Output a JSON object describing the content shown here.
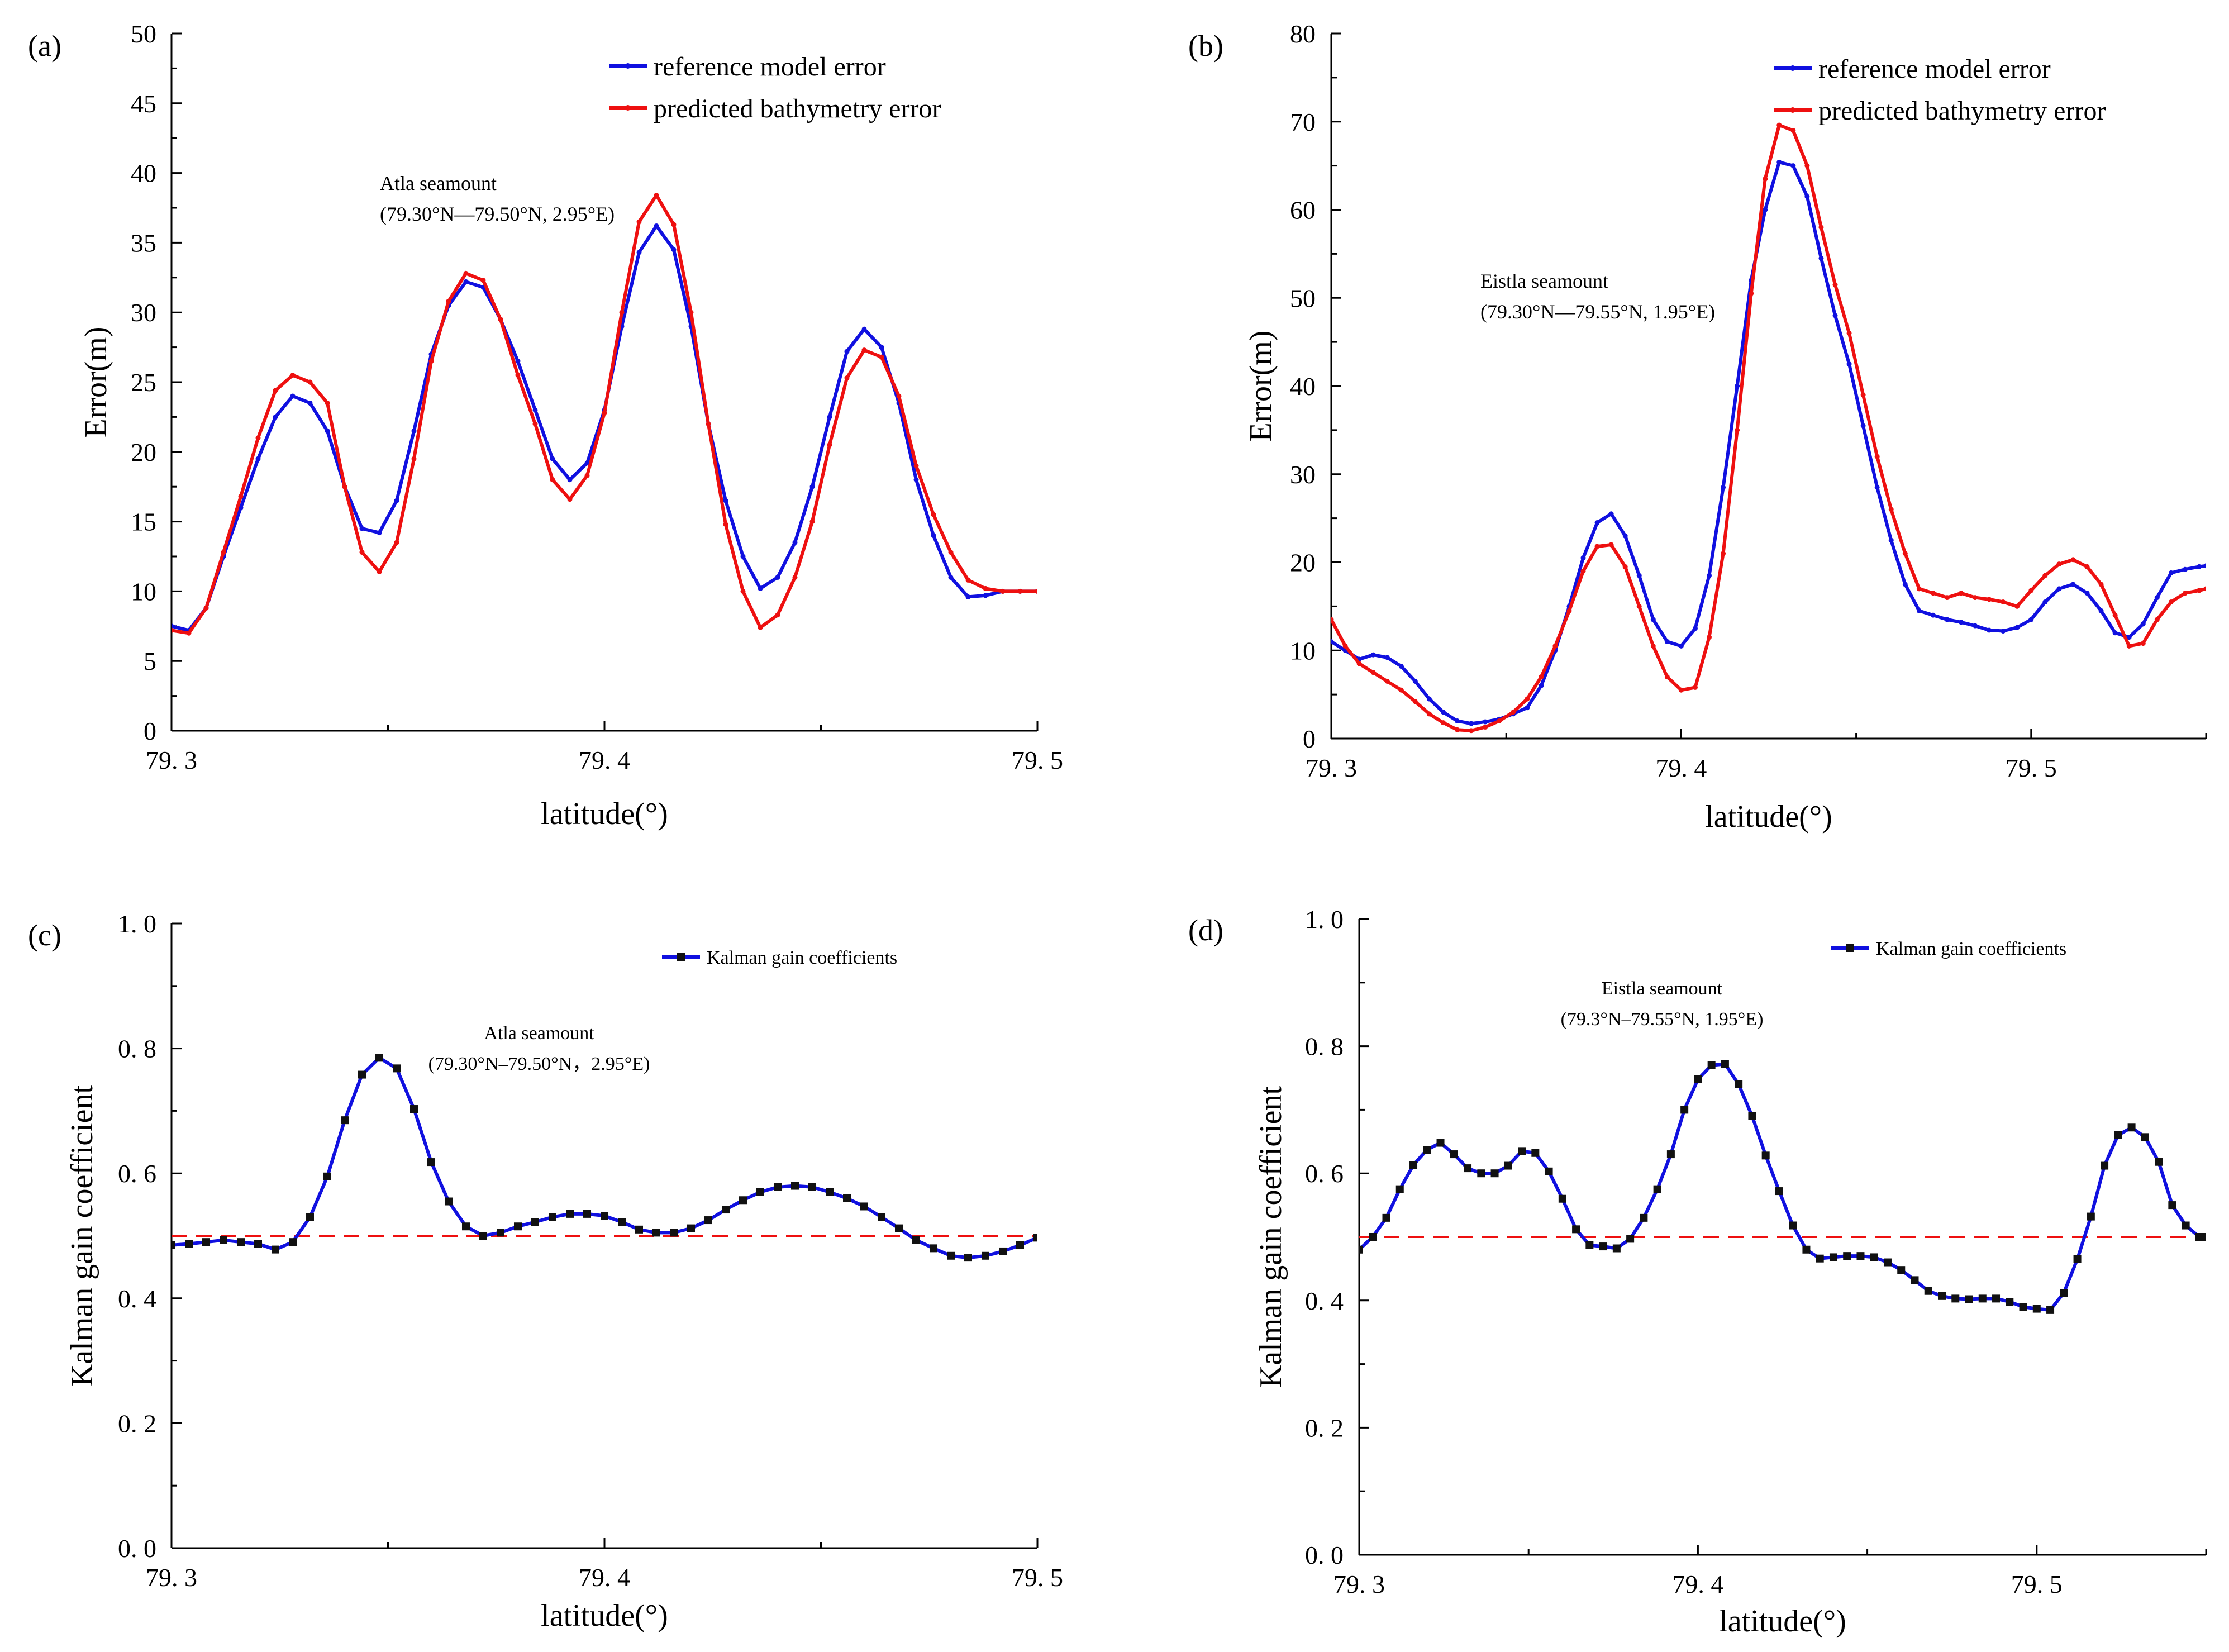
{
  "figure": {
    "colors": {
      "blue": "#1010e0",
      "red": "#ee1010",
      "marker": "#111111",
      "refline": "#ee1010"
    }
  },
  "chart_data": [
    {
      "id": "a",
      "type": "line",
      "panel_label": "(a)",
      "xlabel": "latitude(°)",
      "ylabel": "Error(m)",
      "xlim": [
        79.3,
        79.5
      ],
      "ylim": [
        0,
        50
      ],
      "xticks": [
        79.3,
        79.4,
        79.5
      ],
      "xtick_labels": [
        "79. 3",
        "79. 4",
        "79. 5"
      ],
      "yticks": [
        0,
        5,
        10,
        15,
        20,
        25,
        30,
        35,
        40,
        45,
        50
      ],
      "ytick_labels": [
        "0",
        "5",
        "10",
        "15",
        "20",
        "25",
        "30",
        "35",
        "40",
        "45",
        "50"
      ],
      "legend": {
        "position": "top-right",
        "entries": [
          "reference model error",
          "predicted bathymetry error"
        ]
      },
      "annotation": {
        "lines": [
          "Atla seamount",
          "(79.30°N—79.50°N, 2.95°E)"
        ]
      },
      "series": [
        {
          "name": "reference model error",
          "color": "#1010e0",
          "marker": "dot",
          "x": [
            79.3,
            79.304,
            79.308,
            79.312,
            79.316,
            79.32,
            79.324,
            79.328,
            79.332,
            79.336,
            79.34,
            79.344,
            79.348,
            79.352,
            79.356,
            79.36,
            79.364,
            79.368,
            79.372,
            79.376,
            79.38,
            79.384,
            79.388,
            79.392,
            79.396,
            79.4,
            79.404,
            79.408,
            79.412,
            79.416,
            79.42,
            79.424,
            79.428,
            79.432,
            79.436,
            79.44,
            79.444,
            79.448,
            79.452,
            79.456,
            79.46,
            79.464,
            79.468,
            79.472,
            79.476,
            79.48,
            79.484,
            79.488,
            79.492,
            79.496,
            79.5
          ],
          "y": [
            7.5,
            7.2,
            8.8,
            12.5,
            16.0,
            19.5,
            22.5,
            24.0,
            23.5,
            21.5,
            17.5,
            14.5,
            14.2,
            16.5,
            21.5,
            27.0,
            30.5,
            32.2,
            31.8,
            29.5,
            26.5,
            23.0,
            19.5,
            18.0,
            19.2,
            23.0,
            29.0,
            34.3,
            36.2,
            34.5,
            29.0,
            22.0,
            16.5,
            12.5,
            10.2,
            11.0,
            13.5,
            17.5,
            22.5,
            27.2,
            28.8,
            27.5,
            23.5,
            18.0,
            14.0,
            11.0,
            9.6,
            9.7,
            10.0,
            10.0,
            10.0
          ]
        },
        {
          "name": "predicted bathymetry error",
          "color": "#ee1010",
          "marker": "dot",
          "x": [
            79.3,
            79.304,
            79.308,
            79.312,
            79.316,
            79.32,
            79.324,
            79.328,
            79.332,
            79.336,
            79.34,
            79.344,
            79.348,
            79.352,
            79.356,
            79.36,
            79.364,
            79.368,
            79.372,
            79.376,
            79.38,
            79.384,
            79.388,
            79.392,
            79.396,
            79.4,
            79.404,
            79.408,
            79.412,
            79.416,
            79.42,
            79.424,
            79.428,
            79.432,
            79.436,
            79.44,
            79.444,
            79.448,
            79.452,
            79.456,
            79.46,
            79.464,
            79.468,
            79.472,
            79.476,
            79.48,
            79.484,
            79.488,
            79.492,
            79.496,
            79.5
          ],
          "y": [
            7.2,
            7.0,
            8.8,
            12.8,
            16.8,
            21.0,
            24.4,
            25.5,
            25.0,
            23.5,
            17.5,
            12.8,
            11.4,
            13.5,
            19.5,
            26.5,
            30.8,
            32.8,
            32.3,
            29.5,
            25.5,
            22.0,
            18.0,
            16.6,
            18.3,
            22.8,
            30.0,
            36.5,
            38.4,
            36.3,
            30.0,
            22.0,
            14.8,
            10.0,
            7.4,
            8.3,
            11.0,
            15.0,
            20.5,
            25.3,
            27.3,
            26.8,
            24.0,
            19.0,
            15.5,
            12.8,
            10.8,
            10.2,
            10.0,
            10.0,
            10.0
          ]
        }
      ]
    },
    {
      "id": "b",
      "type": "line",
      "panel_label": "(b)",
      "xlabel": "latitude(°)",
      "ylabel": "Error(m)",
      "xlim": [
        79.3,
        79.55
      ],
      "ylim": [
        0,
        80
      ],
      "xticks": [
        79.3,
        79.4,
        79.5
      ],
      "xtick_labels": [
        "79. 3",
        "79. 4",
        "79. 5"
      ],
      "yticks": [
        0,
        10,
        20,
        30,
        40,
        50,
        60,
        70,
        80
      ],
      "ytick_labels": [
        "0",
        "10",
        "20",
        "30",
        "40",
        "50",
        "60",
        "70",
        "80"
      ],
      "legend": {
        "position": "top-right",
        "entries": [
          "reference model error",
          "predicted bathymetry error"
        ]
      },
      "annotation": {
        "lines": [
          "Eistla seamount",
          "(79.30°N—79.55°N, 1.95°E)"
        ]
      },
      "series": [
        {
          "name": "reference model error",
          "color": "#1010e0",
          "marker": "dot",
          "x": [
            79.3,
            79.304,
            79.308,
            79.312,
            79.316,
            79.32,
            79.324,
            79.328,
            79.332,
            79.336,
            79.34,
            79.344,
            79.348,
            79.352,
            79.356,
            79.36,
            79.364,
            79.368,
            79.372,
            79.376,
            79.38,
            79.384,
            79.388,
            79.392,
            79.396,
            79.4,
            79.404,
            79.408,
            79.412,
            79.416,
            79.42,
            79.424,
            79.428,
            79.432,
            79.436,
            79.44,
            79.444,
            79.448,
            79.452,
            79.456,
            79.46,
            79.464,
            79.468,
            79.472,
            79.476,
            79.48,
            79.484,
            79.488,
            79.492,
            79.496,
            79.5,
            79.504,
            79.508,
            79.512,
            79.516,
            79.52,
            79.524,
            79.528,
            79.532,
            79.536,
            79.54,
            79.544,
            79.548,
            79.55
          ],
          "y": [
            11.0,
            10.0,
            9.0,
            9.5,
            9.2,
            8.2,
            6.5,
            4.5,
            3.0,
            2.0,
            1.7,
            1.9,
            2.2,
            2.8,
            3.5,
            6.0,
            10.0,
            15.0,
            20.5,
            24.5,
            25.5,
            23.0,
            18.5,
            13.5,
            11.0,
            10.5,
            12.5,
            18.5,
            28.5,
            40.0,
            52.0,
            60.0,
            65.4,
            65.0,
            61.5,
            54.5,
            48.0,
            42.5,
            35.5,
            28.5,
            22.5,
            17.5,
            14.5,
            14.0,
            13.5,
            13.2,
            12.8,
            12.3,
            12.2,
            12.6,
            13.5,
            15.5,
            17.0,
            17.5,
            16.5,
            14.5,
            12.0,
            11.5,
            13.0,
            16.0,
            18.8,
            19.2,
            19.5,
            19.6
          ]
        },
        {
          "name": "predicted bathymetry error",
          "color": "#ee1010",
          "marker": "dot",
          "x": [
            79.3,
            79.304,
            79.308,
            79.312,
            79.316,
            79.32,
            79.324,
            79.328,
            79.332,
            79.336,
            79.34,
            79.344,
            79.348,
            79.352,
            79.356,
            79.36,
            79.364,
            79.368,
            79.372,
            79.376,
            79.38,
            79.384,
            79.388,
            79.392,
            79.396,
            79.4,
            79.404,
            79.408,
            79.412,
            79.416,
            79.42,
            79.424,
            79.428,
            79.432,
            79.436,
            79.44,
            79.444,
            79.448,
            79.452,
            79.456,
            79.46,
            79.464,
            79.468,
            79.472,
            79.476,
            79.48,
            79.484,
            79.488,
            79.492,
            79.496,
            79.5,
            79.504,
            79.508,
            79.512,
            79.516,
            79.52,
            79.524,
            79.528,
            79.532,
            79.536,
            79.54,
            79.544,
            79.548,
            79.55
          ],
          "y": [
            13.5,
            10.5,
            8.5,
            7.5,
            6.5,
            5.5,
            4.2,
            2.8,
            1.8,
            1.0,
            0.9,
            1.3,
            2.0,
            3.0,
            4.5,
            7.0,
            10.5,
            14.5,
            19.0,
            21.8,
            22.0,
            19.5,
            15.0,
            10.5,
            7.0,
            5.5,
            5.8,
            11.5,
            21.0,
            35.0,
            50.5,
            63.5,
            69.6,
            69.0,
            65.0,
            58.0,
            51.5,
            46.0,
            39.0,
            32.0,
            26.0,
            21.0,
            17.0,
            16.5,
            16.0,
            16.5,
            16.0,
            15.8,
            15.5,
            15.0,
            16.8,
            18.5,
            19.8,
            20.3,
            19.5,
            17.5,
            14.0,
            10.5,
            10.8,
            13.5,
            15.5,
            16.5,
            16.8,
            17.0
          ]
        }
      ]
    },
    {
      "id": "c",
      "type": "line",
      "panel_label": "(c)",
      "xlabel": "latitude(°)",
      "ylabel": "Kalman gain coefficient",
      "xlim": [
        79.3,
        79.5
      ],
      "ylim": [
        0,
        1.0
      ],
      "xticks": [
        79.3,
        79.4,
        79.5
      ],
      "xtick_labels": [
        "79. 3",
        "79. 4",
        "79. 5"
      ],
      "yticks": [
        0,
        0.2,
        0.4,
        0.6,
        0.8,
        1.0
      ],
      "ytick_labels": [
        "0. 0",
        "0. 2",
        "0. 4",
        "0. 6",
        "0. 8",
        "1. 0"
      ],
      "reference_line": {
        "y": 0.5,
        "style": "dashed",
        "color": "#ee1010"
      },
      "legend": {
        "position": "top-right",
        "entries": [
          "Kalman gain coefficients"
        ]
      },
      "annotation": {
        "lines": [
          "Atla seamount",
          "(79.30°N–79.50°N，2.95°E)"
        ]
      },
      "series": [
        {
          "name": "Kalman gain coefficients",
          "color": "#1010e0",
          "marker": "square",
          "x": [
            79.3,
            79.304,
            79.308,
            79.312,
            79.316,
            79.32,
            79.324,
            79.328,
            79.332,
            79.336,
            79.34,
            79.344,
            79.348,
            79.352,
            79.356,
            79.36,
            79.364,
            79.368,
            79.372,
            79.376,
            79.38,
            79.384,
            79.388,
            79.392,
            79.396,
            79.4,
            79.404,
            79.408,
            79.412,
            79.416,
            79.42,
            79.424,
            79.428,
            79.432,
            79.436,
            79.44,
            79.444,
            79.448,
            79.452,
            79.456,
            79.46,
            79.464,
            79.468,
            79.472,
            79.476,
            79.48,
            79.484,
            79.488,
            79.492,
            79.496,
            79.5
          ],
          "y": [
            0.485,
            0.487,
            0.49,
            0.493,
            0.49,
            0.487,
            0.478,
            0.49,
            0.53,
            0.595,
            0.685,
            0.758,
            0.785,
            0.768,
            0.703,
            0.618,
            0.555,
            0.515,
            0.5,
            0.505,
            0.515,
            0.522,
            0.53,
            0.535,
            0.535,
            0.532,
            0.522,
            0.51,
            0.505,
            0.505,
            0.512,
            0.525,
            0.542,
            0.557,
            0.57,
            0.578,
            0.58,
            0.578,
            0.57,
            0.56,
            0.547,
            0.53,
            0.512,
            0.493,
            0.48,
            0.468,
            0.465,
            0.468,
            0.475,
            0.485,
            0.497
          ]
        }
      ]
    },
    {
      "id": "d",
      "type": "line",
      "panel_label": "(d)",
      "xlabel": "latitude(°)",
      "ylabel": "Kalman gain coefficient",
      "xlim": [
        79.3,
        79.55
      ],
      "ylim": [
        0,
        1.0
      ],
      "xticks": [
        79.3,
        79.4,
        79.5
      ],
      "xtick_labels": [
        "79. 3",
        "79. 4",
        "79. 5"
      ],
      "yticks": [
        0,
        0.2,
        0.4,
        0.6,
        0.8,
        1.0
      ],
      "ytick_labels": [
        "0. 0",
        "0. 2",
        "0. 4",
        "0. 6",
        "0. 8",
        "1. 0"
      ],
      "reference_line": {
        "y": 0.5,
        "style": "dashed",
        "color": "#ee1010"
      },
      "legend": {
        "position": "top-right",
        "entries": [
          "Kalman gain coefficients"
        ]
      },
      "annotation": {
        "lines": [
          "Eistla seamount",
          "(79.3°N–79.55°N, 1.95°E)"
        ]
      },
      "series": [
        {
          "name": "Kalman gain coefficients",
          "color": "#1010e0",
          "marker": "square",
          "x": [
            79.3,
            79.304,
            79.308,
            79.312,
            79.316,
            79.32,
            79.324,
            79.328,
            79.332,
            79.336,
            79.34,
            79.344,
            79.348,
            79.352,
            79.356,
            79.36,
            79.364,
            79.368,
            79.372,
            79.376,
            79.38,
            79.384,
            79.388,
            79.392,
            79.396,
            79.4,
            79.404,
            79.408,
            79.412,
            79.416,
            79.42,
            79.424,
            79.428,
            79.432,
            79.436,
            79.44,
            79.444,
            79.448,
            79.452,
            79.456,
            79.46,
            79.464,
            79.468,
            79.472,
            79.476,
            79.48,
            79.484,
            79.488,
            79.492,
            79.496,
            79.5,
            79.504,
            79.508,
            79.512,
            79.516,
            79.52,
            79.524,
            79.528,
            79.532,
            79.536,
            79.54,
            79.544,
            79.548,
            79.55
          ],
          "y": [
            0.48,
            0.5,
            0.53,
            0.575,
            0.613,
            0.637,
            0.648,
            0.63,
            0.608,
            0.6,
            0.6,
            0.612,
            0.635,
            0.632,
            0.603,
            0.56,
            0.512,
            0.487,
            0.485,
            0.482,
            0.497,
            0.53,
            0.575,
            0.63,
            0.7,
            0.748,
            0.77,
            0.772,
            0.74,
            0.69,
            0.628,
            0.572,
            0.518,
            0.48,
            0.466,
            0.468,
            0.47,
            0.47,
            0.468,
            0.46,
            0.448,
            0.432,
            0.415,
            0.407,
            0.403,
            0.402,
            0.403,
            0.403,
            0.398,
            0.39,
            0.387,
            0.385,
            0.412,
            0.465,
            0.532,
            0.612,
            0.66,
            0.672,
            0.657,
            0.618,
            0.55,
            0.518,
            0.5,
            0.5
          ]
        }
      ]
    }
  ]
}
